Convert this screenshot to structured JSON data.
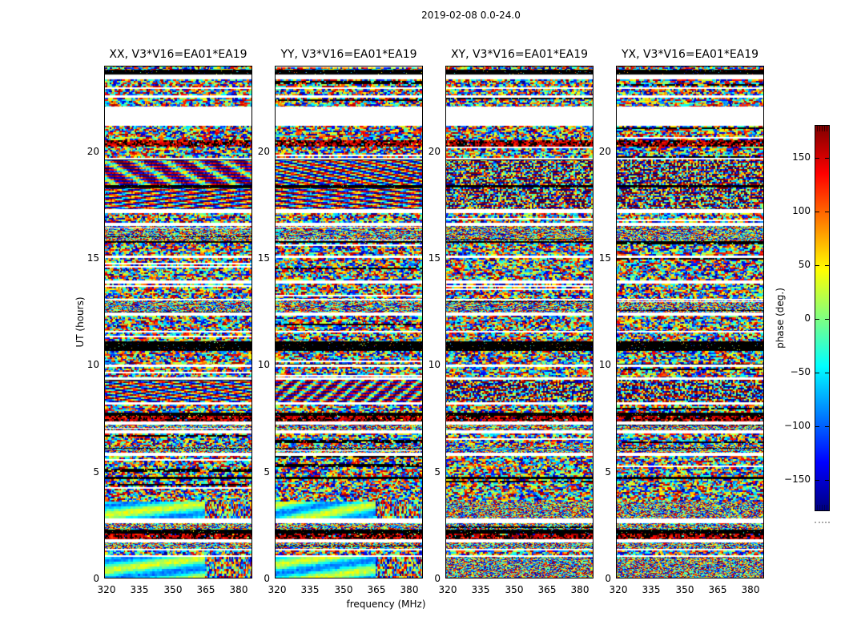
{
  "chart_data": {
    "type": "heatmap",
    "suptitle": "2019-02-08 0.0-24.0",
    "xlabel": "frequency (MHz)",
    "ylabel": "UT (hours)",
    "xlim": [
      319.6,
      386.3
    ],
    "ylim": [
      0,
      24
    ],
    "xticks": [
      "320",
      "335",
      "350",
      "365",
      "380"
    ],
    "yticks": [
      "0",
      "5",
      "10",
      "15",
      "20"
    ],
    "grid": false,
    "legend": "none",
    "panels": [
      {
        "label": "XX, V3*V16=EA01*EA19",
        "seed": 11,
        "fringe_strength": 1.0
      },
      {
        "label": "YY, V3*V16=EA01*EA19",
        "seed": 23,
        "fringe_strength": 1.0
      },
      {
        "label": "XY, V3*V16=EA01*EA19",
        "seed": 37,
        "fringe_strength": 0.3
      },
      {
        "label": "YX, V3*V16=EA01*EA19",
        "seed": 53,
        "fringe_strength": 0.3
      }
    ],
    "colorbar": {
      "label": "phase (deg.)",
      "ticks": [
        "150",
        "100",
        "50",
        "0",
        "−50",
        "−100",
        "−150"
      ],
      "min": -180,
      "max": 180,
      "colormap": "jet",
      "stops_top_to_bottom": [
        "#800000",
        "#ff0000",
        "#ff8000",
        "#ffff00",
        "#80ff80",
        "#00ffff",
        "#0080ff",
        "#0000ff",
        "#000080"
      ]
    },
    "bands": [
      [
        23.8,
        24,
        "noise"
      ],
      [
        23.6,
        23.8,
        "black"
      ],
      [
        23.35,
        23.6,
        "white"
      ],
      [
        23.0,
        23.35,
        "noise"
      ],
      [
        22.9,
        23.0,
        "white"
      ],
      [
        22.6,
        22.9,
        "noise"
      ],
      [
        22.5,
        22.6,
        "white"
      ],
      [
        22.1,
        22.5,
        "noise"
      ],
      [
        21.2,
        22.1,
        "white"
      ],
      [
        20.5,
        21.2,
        "noise"
      ],
      [
        20.2,
        20.5,
        "darkred"
      ],
      [
        19.7,
        20.2,
        "noise"
      ],
      [
        19.6,
        19.7,
        "white"
      ],
      [
        18.4,
        19.6,
        "fringe"
      ],
      [
        18.3,
        18.4,
        "black"
      ],
      [
        17.3,
        18.3,
        "fringe"
      ],
      [
        17.1,
        17.3,
        "white"
      ],
      [
        16.65,
        17.1,
        "noise"
      ],
      [
        16.5,
        16.65,
        "white"
      ],
      [
        15.8,
        16.5,
        "fine"
      ],
      [
        15.7,
        15.8,
        "black"
      ],
      [
        15.1,
        15.7,
        "noise"
      ],
      [
        15.0,
        15.1,
        "white"
      ],
      [
        13.95,
        15.0,
        "noise"
      ],
      [
        13.8,
        13.95,
        "white"
      ],
      [
        13.1,
        13.8,
        "noise"
      ],
      [
        13.0,
        13.1,
        "white"
      ],
      [
        12.45,
        13.0,
        "fine"
      ],
      [
        12.3,
        12.45,
        "white"
      ],
      [
        11.6,
        12.3,
        "noise"
      ],
      [
        11.5,
        11.6,
        "white"
      ],
      [
        11.1,
        11.5,
        "noise"
      ],
      [
        10.65,
        11.1,
        "black"
      ],
      [
        10.0,
        10.65,
        "noise"
      ],
      [
        9.9,
        10.0,
        "white"
      ],
      [
        9.4,
        9.9,
        "noise"
      ],
      [
        9.3,
        9.4,
        "white"
      ],
      [
        8.25,
        9.3,
        "fringe"
      ],
      [
        8.15,
        8.25,
        "white"
      ],
      [
        7.75,
        8.15,
        "noise"
      ],
      [
        7.6,
        7.75,
        "black"
      ],
      [
        7.35,
        7.6,
        "darkred"
      ],
      [
        7.2,
        7.35,
        "white"
      ],
      [
        6.95,
        7.2,
        "fine"
      ],
      [
        6.8,
        6.95,
        "white"
      ],
      [
        6.2,
        6.8,
        "noise"
      ],
      [
        5.9,
        6.2,
        "fine"
      ],
      [
        5.75,
        5.9,
        "white"
      ],
      [
        4.75,
        5.75,
        "noise"
      ],
      [
        4.65,
        4.75,
        "black"
      ],
      [
        3.6,
        4.65,
        "noise"
      ],
      [
        2.8,
        3.6,
        "smooth"
      ],
      [
        2.6,
        2.8,
        "white"
      ],
      [
        2.3,
        2.6,
        "fine"
      ],
      [
        2.1,
        2.3,
        "black"
      ],
      [
        1.85,
        2.1,
        "darkred"
      ],
      [
        1.7,
        1.85,
        "white"
      ],
      [
        1.4,
        1.7,
        "fine"
      ],
      [
        1.3,
        1.4,
        "white"
      ],
      [
        1.1,
        1.3,
        "noise"
      ],
      [
        1.0,
        1.1,
        "white"
      ],
      [
        0,
        1.0,
        "smooth"
      ]
    ]
  }
}
